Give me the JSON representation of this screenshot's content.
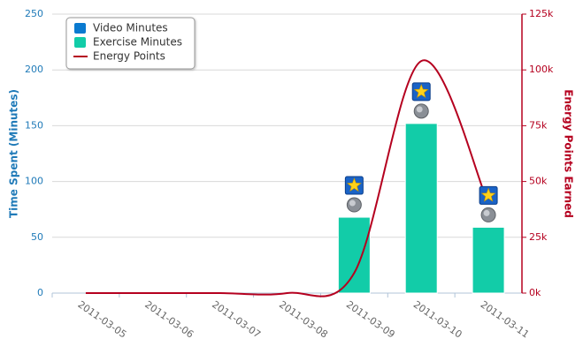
{
  "chart_data": {
    "type": "bar",
    "categories": [
      "2011-03-05",
      "2011-03-06",
      "2011-03-07",
      "2011-03-08",
      "2011-03-09",
      "2011-03-10",
      "2011-03-11"
    ],
    "series": [
      {
        "name": "Video Minutes",
        "color": "#0a7ad0",
        "type": "bar",
        "values": [
          0,
          0,
          0,
          0,
          0,
          0,
          0
        ]
      },
      {
        "name": "Exercise Minutes",
        "color": "#12cca8",
        "type": "bar",
        "values": [
          0,
          0,
          0,
          0,
          68,
          152,
          59
        ]
      },
      {
        "name": "Energy Points",
        "color": "#b5001f",
        "type": "line",
        "axis": "y2",
        "values": [
          0,
          0,
          0,
          0,
          9000,
          104000,
          40000
        ]
      }
    ],
    "ylabel": "Time Spent (Minutes)",
    "y2label": "Energy Points Earned",
    "ylim": [
      0,
      250
    ],
    "yticks": [
      0,
      50,
      100,
      150,
      200,
      250
    ],
    "y2lim": [
      0,
      125000
    ],
    "y2ticks": [
      {
        "value": 0,
        "label": "0k"
      },
      {
        "value": 25000,
        "label": "25k"
      },
      {
        "value": 50000,
        "label": "50k"
      },
      {
        "value": 75000,
        "label": "75k"
      },
      {
        "value": 100000,
        "label": "100k"
      },
      {
        "value": 125000,
        "label": "125k"
      }
    ],
    "grid": true,
    "legend": "top-left"
  }
}
